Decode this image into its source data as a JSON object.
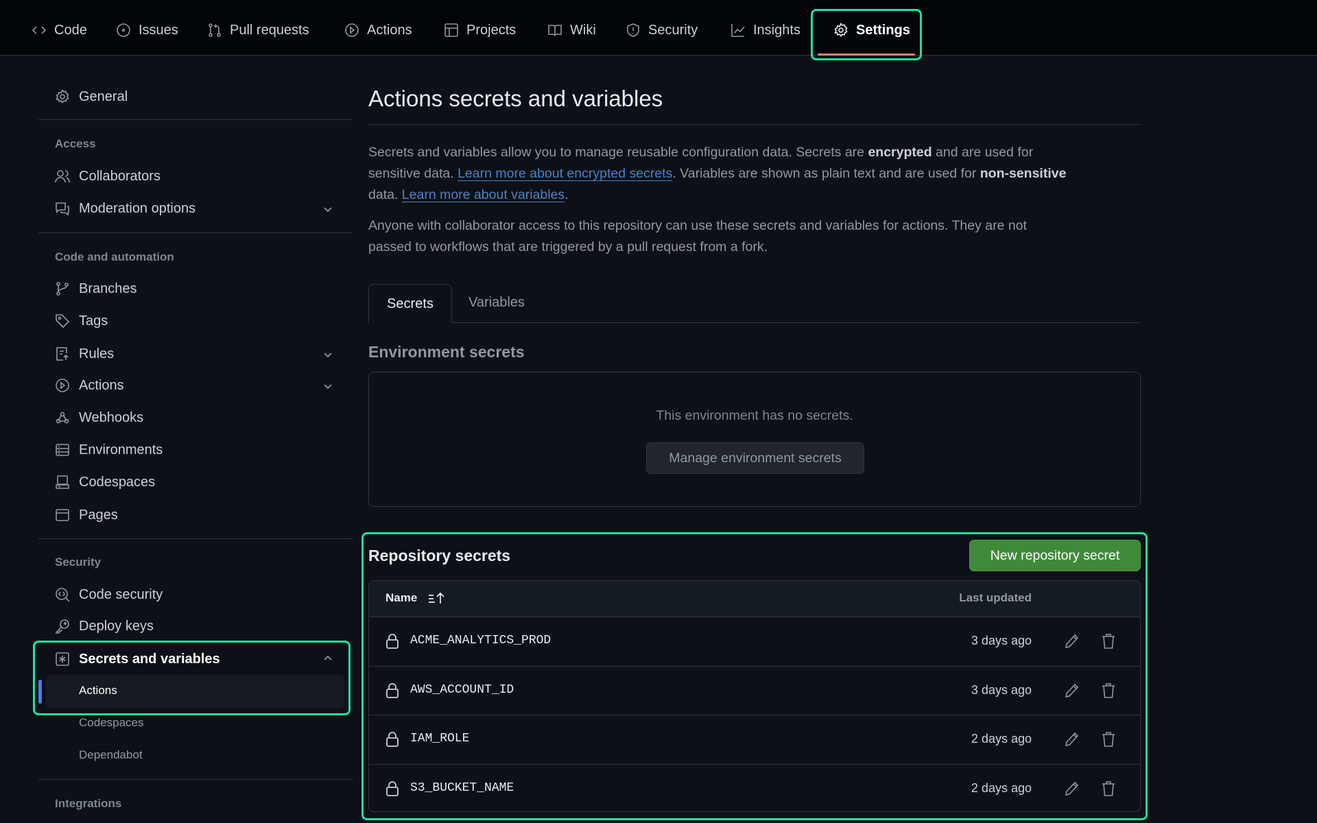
{
  "nav": {
    "items": [
      {
        "label": "Code",
        "icon": "code-icon"
      },
      {
        "label": "Issues",
        "icon": "issue-icon"
      },
      {
        "label": "Pull requests",
        "icon": "pull-request-icon"
      },
      {
        "label": "Actions",
        "icon": "play-icon"
      },
      {
        "label": "Projects",
        "icon": "table-icon"
      },
      {
        "label": "Wiki",
        "icon": "book-icon"
      },
      {
        "label": "Security",
        "icon": "shield-icon"
      },
      {
        "label": "Insights",
        "icon": "graph-icon"
      },
      {
        "label": "Settings",
        "icon": "gear-icon",
        "active": true
      }
    ]
  },
  "sidebar": {
    "general": "General",
    "sections": [
      {
        "title": "Access",
        "items": [
          {
            "label": "Collaborators",
            "icon": "people-icon"
          },
          {
            "label": "Moderation options",
            "icon": "comment-icon",
            "expandable": true
          }
        ]
      },
      {
        "title": "Code and automation",
        "items": [
          {
            "label": "Branches",
            "icon": "branch-icon"
          },
          {
            "label": "Tags",
            "icon": "tag-icon"
          },
          {
            "label": "Rules",
            "icon": "rules-icon",
            "expandable": true
          },
          {
            "label": "Actions",
            "icon": "play-icon",
            "expandable": true
          },
          {
            "label": "Webhooks",
            "icon": "webhook-icon"
          },
          {
            "label": "Environments",
            "icon": "server-icon"
          },
          {
            "label": "Codespaces",
            "icon": "codespaces-icon"
          },
          {
            "label": "Pages",
            "icon": "browser-icon"
          }
        ]
      },
      {
        "title": "Security",
        "items": [
          {
            "label": "Code security",
            "icon": "codescan-icon"
          },
          {
            "label": "Deploy keys",
            "icon": "key-icon"
          },
          {
            "label": "Secrets and variables",
            "icon": "asterisk-icon",
            "expanded": true
          }
        ]
      }
    ],
    "sub_items": [
      {
        "label": "Actions",
        "active": true
      },
      {
        "label": "Codespaces"
      },
      {
        "label": "Dependabot"
      }
    ],
    "integrations": "Integrations"
  },
  "main": {
    "title": "Actions secrets and variables",
    "p1": {
      "a": "Secrets and variables allow you to manage reusable configuration data. Secrets are ",
      "b": "encrypted",
      "c": " and are used for",
      "d": "sensitive data. ",
      "link1": "Learn more about encrypted secrets",
      "e": ". Variables are shown as plain text and are used for ",
      "f": "non-sensitive",
      "g": "data. ",
      "link2": "Learn more about variables",
      "h": "."
    },
    "p2": {
      "l1": "Anyone with collaborator access to this repository can use these secrets and variables for actions. They are not",
      "l2": "passed to workflows that are triggered by a pull request from a fork."
    },
    "tabs": [
      {
        "label": "Secrets",
        "active": true
      },
      {
        "label": "Variables"
      }
    ],
    "env": {
      "title": "Environment secrets",
      "empty": "This environment has no secrets.",
      "button": "Manage environment secrets"
    },
    "repo": {
      "title": "Repository secrets",
      "button": "New repository secret",
      "col_name": "Name",
      "col_updated": "Last updated",
      "rows": [
        {
          "name": "ACME_ANALYTICS_PROD",
          "updated": "3 days ago"
        },
        {
          "name": "AWS_ACCOUNT_ID",
          "updated": "3 days ago"
        },
        {
          "name": "IAM_ROLE",
          "updated": "2 days ago"
        },
        {
          "name": "S3_BUCKET_NAME",
          "updated": "2 days ago"
        }
      ]
    }
  },
  "colors": {
    "highlight": "#1fe0a0",
    "primary_button": "#3f8a3a",
    "underline": "#f78166",
    "active_indicator": "#4a7eea"
  }
}
